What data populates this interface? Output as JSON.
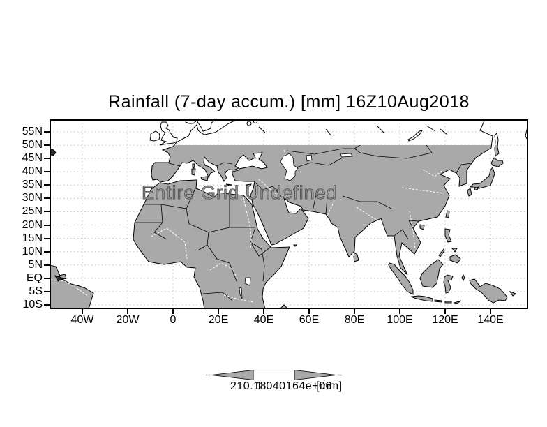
{
  "title": "Rainfall (7-day accum.) [mm] 16Z10Aug2018",
  "overlay_message": "Entire Grid Undefined",
  "axes": {
    "lat_labels": [
      "55N",
      "50N",
      "45N",
      "40N",
      "35N",
      "30N",
      "25N",
      "20N",
      "15N",
      "10N",
      "5N",
      "EQ",
      "5S",
      "10S"
    ],
    "lon_labels": [
      "40W",
      "20W",
      "0",
      "20E",
      "40E",
      "60E",
      "80E",
      "100E",
      "120E",
      "140E"
    ]
  },
  "colorbar": {
    "left_label": "210.18",
    "right_label": "1.040164e+06",
    "units_label": "[mm]"
  },
  "colors": {
    "land_fill": "#a9a9a9",
    "ocean": "#ffffff",
    "coastline": "#000000",
    "gridline": "#bfbfbf",
    "overlay_text": "#6f6f6f",
    "frame": "#000000"
  }
}
